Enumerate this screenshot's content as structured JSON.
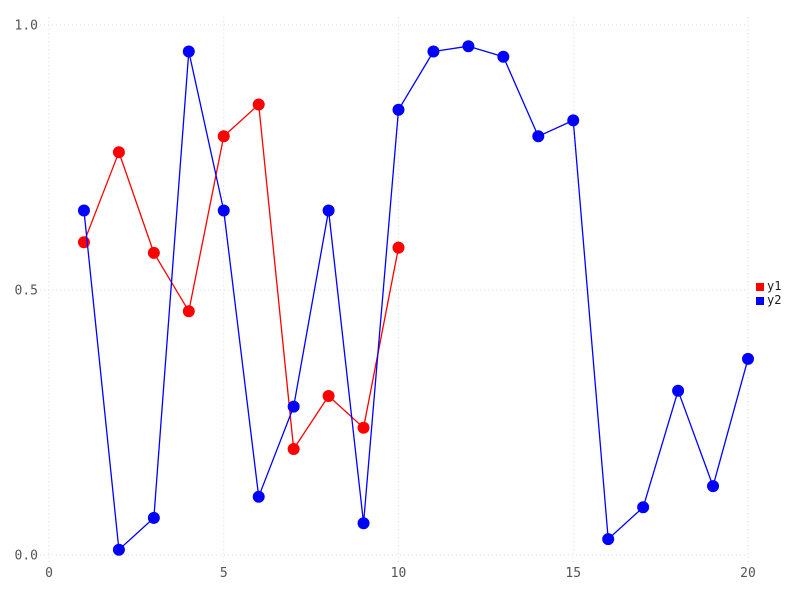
{
  "chart_data": {
    "type": "line",
    "title": "",
    "xlabel": "",
    "ylabel": "",
    "xlim": [
      0,
      20
    ],
    "ylim": [
      0.0,
      1.0
    ],
    "grid": true,
    "marker": "circle",
    "legend_position": "right-center-outside",
    "xticks": {
      "values": [
        0,
        5,
        10,
        15,
        20
      ],
      "labels": [
        "0",
        "5",
        "10",
        "15",
        "20"
      ]
    },
    "yticks": {
      "values": [
        0.0,
        0.5,
        1.0
      ],
      "labels": [
        "0.0",
        "0.5",
        "1.0"
      ]
    },
    "series": [
      {
        "name": "y1",
        "color": "#ff0000",
        "x": [
          1,
          2,
          3,
          4,
          5,
          6,
          7,
          8,
          9,
          10
        ],
        "values": [
          0.59,
          0.76,
          0.57,
          0.46,
          0.79,
          0.85,
          0.2,
          0.3,
          0.24,
          0.58
        ]
      },
      {
        "name": "y2",
        "color": "#0000ff",
        "x": [
          1,
          2,
          3,
          4,
          5,
          6,
          7,
          8,
          9,
          10,
          11,
          12,
          13,
          14,
          15,
          16,
          17,
          18,
          19,
          20
        ],
        "values": [
          0.65,
          0.01,
          0.07,
          0.95,
          0.65,
          0.11,
          0.28,
          0.65,
          0.06,
          0.84,
          0.95,
          0.96,
          0.94,
          0.79,
          0.82,
          0.03,
          0.09,
          0.31,
          0.13,
          0.37
        ]
      }
    ]
  },
  "legend": {
    "items": [
      {
        "label": "y1",
        "color": "#ff0000"
      },
      {
        "label": "y2",
        "color": "#0000ff"
      }
    ]
  },
  "colors": {
    "background": "#ffffff",
    "grid": "#d9d9e3",
    "tick_label": "#545454",
    "legend_text": "#1a1a1a"
  }
}
